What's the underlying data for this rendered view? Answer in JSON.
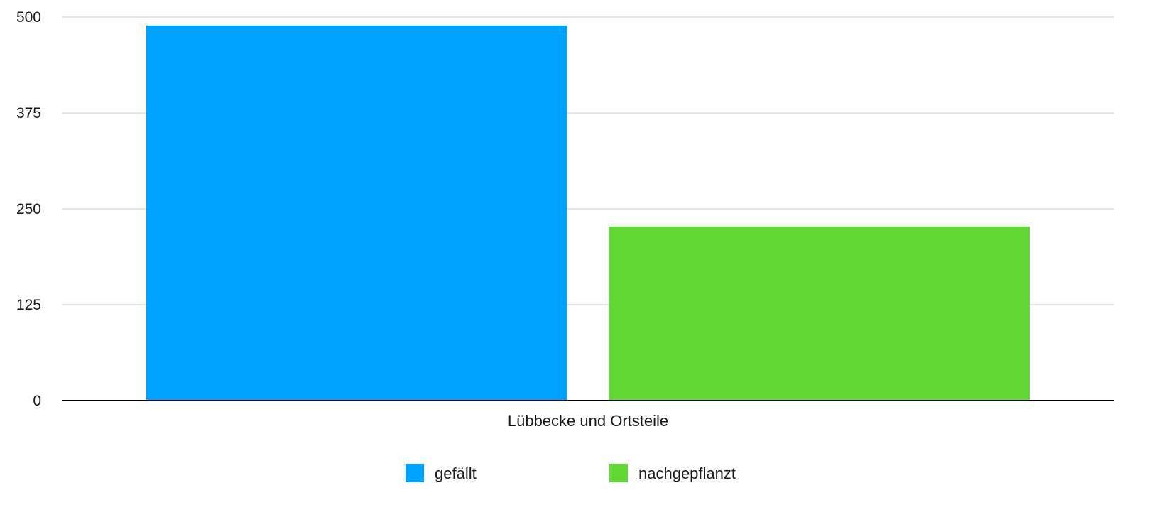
{
  "chart_data": {
    "type": "bar",
    "categories": [
      "Lübbecke und Ortsteile"
    ],
    "series": [
      {
        "name": "gefällt",
        "values": [
          489
        ],
        "color": "#00A2FF"
      },
      {
        "name": "nachgepflanzt",
        "values": [
          227
        ],
        "color": "#61D836"
      }
    ],
    "ylim": [
      0,
      500
    ],
    "yticks": [
      0,
      125,
      250,
      375,
      500
    ],
    "title": "",
    "xlabel": "",
    "ylabel": "",
    "grid": true,
    "legend_position": "bottom"
  }
}
